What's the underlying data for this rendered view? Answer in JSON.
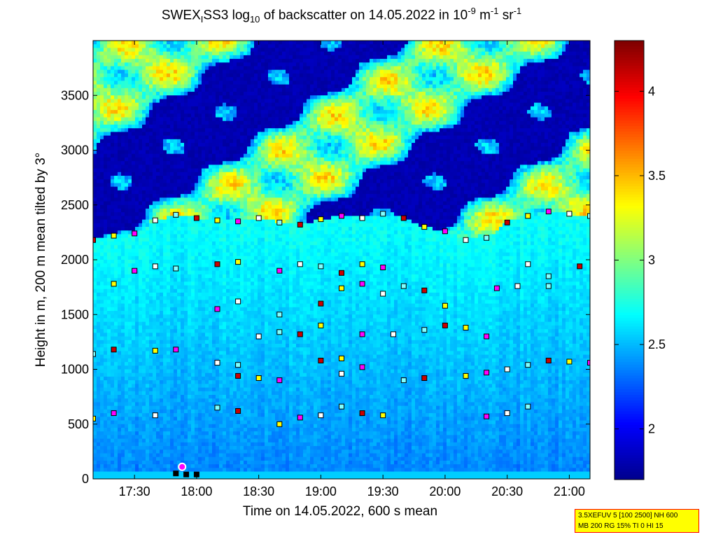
{
  "title": {
    "prefix": "SWEX",
    "sub1": "I",
    "mid": "SS3 log",
    "sub2": "10",
    "rest": " of backscatter on 14.05.2022 in 10",
    "sup1": "-9",
    "unit1": " m",
    "sup2": "-1",
    "unit2": " sr",
    "sup3": "-1"
  },
  "info_box": {
    "line1": "3.5XEFUV 5 [100 2500] NH 600",
    "line2": "MB 200 RG 15% TI 0 HI 15"
  },
  "colors": {
    "colorbar_stops": [
      "#00008f",
      "#0000ff",
      "#0080ff",
      "#00ffff",
      "#80ff80",
      "#ffff00",
      "#ff8000",
      "#ff0000",
      "#800000"
    ],
    "cloud_base_markers": [
      "#cc0000",
      "#ffff00",
      "#ff00ff",
      "#ffffff",
      "#80ffff"
    ]
  },
  "chart_data": {
    "type": "heatmap",
    "xlabel": "Time on 14.05.2022, 600 s mean",
    "ylabel": "Height in m, 200 m mean tilted by 3°",
    "x_range": [
      "17:10",
      "21:10"
    ],
    "x_ticks": [
      "17:30",
      "18:00",
      "18:30",
      "19:00",
      "19:30",
      "20:00",
      "20:30",
      "21:00"
    ],
    "ylim": [
      0,
      4000
    ],
    "y_ticks": [
      0,
      500,
      1000,
      1500,
      2000,
      2500,
      3000,
      3500
    ],
    "colorbar": {
      "range": [
        1.7,
        4.3
      ],
      "ticks": [
        2,
        2.5,
        3,
        3.5,
        4
      ]
    },
    "layers": [
      {
        "name": "",
        "points": [
          [
            "17:10",
            2180
          ],
          [
            "17:20",
            2220
          ],
          [
            "17:30",
            2240
          ],
          [
            "17:40",
            2360
          ],
          [
            "17:50",
            2410
          ],
          [
            "18:00",
            2380
          ],
          [
            "18:10",
            2360
          ],
          [
            "18:20",
            2350
          ],
          [
            "18:30",
            2380
          ],
          [
            "18:40",
            2340
          ],
          [
            "18:50",
            2320
          ],
          [
            "19:00",
            2370
          ],
          [
            "19:10",
            2400
          ],
          [
            "19:20",
            2380
          ],
          [
            "19:30",
            2420
          ],
          [
            "19:40",
            2380
          ],
          [
            "19:50",
            2300
          ],
          [
            "20:00",
            2260
          ],
          [
            "20:10",
            2180
          ],
          [
            "20:20",
            2200
          ],
          [
            "20:30",
            2340
          ],
          [
            "20:40",
            2400
          ],
          [
            "20:50",
            2440
          ],
          [
            "21:00",
            2420
          ],
          [
            "21:10",
            2400
          ]
        ]
      },
      {
        "name": "",
        "points": [
          [
            "17:20",
            1780
          ],
          [
            "17:30",
            1900
          ],
          [
            "17:40",
            1940
          ],
          [
            "17:50",
            1920
          ],
          [
            "18:10",
            1960
          ],
          [
            "18:20",
            1980
          ],
          [
            "18:40",
            1900
          ],
          [
            "18:50",
            1960
          ],
          [
            "19:00",
            1940
          ],
          [
            "19:10",
            1880
          ],
          [
            "19:20",
            1960
          ],
          [
            "19:30",
            1930
          ],
          [
            "20:40",
            1960
          ],
          [
            "20:50",
            1850
          ],
          [
            "21:05",
            1940
          ]
        ]
      },
      {
        "name": "",
        "points": [
          [
            "18:10",
            1550
          ],
          [
            "18:20",
            1620
          ],
          [
            "18:40",
            1500
          ],
          [
            "19:00",
            1600
          ],
          [
            "19:10",
            1740
          ],
          [
            "19:20",
            1780
          ],
          [
            "19:30",
            1690
          ],
          [
            "19:40",
            1760
          ],
          [
            "19:50",
            1720
          ],
          [
            "20:00",
            1580
          ],
          [
            "20:25",
            1740
          ],
          [
            "20:35",
            1760
          ],
          [
            "20:50",
            1760
          ]
        ]
      },
      {
        "name": "",
        "points": [
          [
            "18:30",
            1300
          ],
          [
            "18:40",
            1340
          ],
          [
            "18:50",
            1320
          ],
          [
            "19:00",
            1400
          ],
          [
            "19:20",
            1320
          ],
          [
            "19:35",
            1320
          ],
          [
            "19:50",
            1360
          ],
          [
            "20:00",
            1400
          ],
          [
            "20:10",
            1380
          ],
          [
            "20:20",
            1300
          ]
        ]
      },
      {
        "name": "",
        "points": [
          [
            "17:10",
            1140
          ],
          [
            "17:20",
            1180
          ],
          [
            "17:40",
            1170
          ],
          [
            "17:50",
            1180
          ],
          [
            "18:10",
            1060
          ],
          [
            "18:20",
            1040
          ],
          [
            "19:00",
            1080
          ],
          [
            "19:10",
            1100
          ],
          [
            "19:20",
            1020
          ],
          [
            "20:30",
            1000
          ],
          [
            "20:40",
            1040
          ],
          [
            "20:50",
            1080
          ],
          [
            "21:00",
            1070
          ],
          [
            "21:10",
            1060
          ]
        ]
      },
      {
        "name": "",
        "points": [
          [
            "18:20",
            940
          ],
          [
            "18:30",
            920
          ],
          [
            "18:40",
            900
          ],
          [
            "19:10",
            960
          ],
          [
            "19:40",
            900
          ],
          [
            "19:50",
            920
          ],
          [
            "20:10",
            940
          ],
          [
            "20:20",
            970
          ]
        ]
      },
      {
        "name": "",
        "points": [
          [
            "17:10",
            550
          ],
          [
            "17:20",
            600
          ],
          [
            "17:40",
            580
          ],
          [
            "18:10",
            650
          ],
          [
            "18:20",
            620
          ],
          [
            "18:40",
            500
          ],
          [
            "18:50",
            560
          ],
          [
            "19:00",
            580
          ],
          [
            "19:10",
            660
          ],
          [
            "19:20",
            600
          ],
          [
            "19:30",
            580
          ],
          [
            "20:20",
            570
          ],
          [
            "20:30",
            600
          ],
          [
            "20:40",
            660
          ]
        ]
      },
      {
        "name": "",
        "points": [
          [
            "17:50",
            50
          ],
          [
            "17:55",
            40
          ],
          [
            "18:00",
            40
          ]
        ]
      }
    ]
  }
}
